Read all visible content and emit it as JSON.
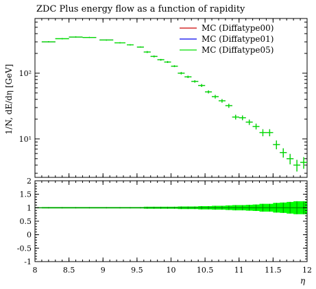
{
  "chart_data": {
    "type": "scatter",
    "title": "ZDC Plus energy flow as a function of rapidity",
    "xlabel": "η",
    "ylabel": "1/N, dE/dη [GeV]",
    "xlim": [
      8,
      12
    ],
    "ylim_log": [
      2.6,
      680
    ],
    "ratio_ylim": [
      -1,
      2
    ],
    "log_y": true,
    "legend_position": "top-right",
    "x_ticks": [
      "8",
      "8.5",
      "9",
      "9.5",
      "10",
      "10.5",
      "11",
      "11.5",
      "12"
    ],
    "y_ticks": [
      {
        "value": 100,
        "label": "10²"
      },
      {
        "value": 10,
        "label": "10¹"
      }
    ],
    "ratio_ticks": [
      "2",
      "1.5",
      "1",
      "0.5",
      "0",
      "-0.5",
      "-1"
    ],
    "series": [
      {
        "name": "MC (Diffatype00)",
        "color": "#cc0000"
      },
      {
        "name": "MC (Diffatype01)",
        "color": "#0000ee"
      },
      {
        "name": "MC (Diffatype05)",
        "color": "#00dd00"
      }
    ],
    "points": [
      {
        "x": 8.2,
        "y": 300,
        "xerr": 0.1,
        "yerr": 0.02
      },
      {
        "x": 8.4,
        "y": 335,
        "xerr": 0.1,
        "yerr": 0.02
      },
      {
        "x": 8.6,
        "y": 355,
        "xerr": 0.1,
        "yerr": 0.02
      },
      {
        "x": 8.8,
        "y": 350,
        "xerr": 0.1,
        "yerr": 0.02
      },
      {
        "x": 9.05,
        "y": 320,
        "xerr": 0.1,
        "yerr": 0.02
      },
      {
        "x": 9.25,
        "y": 290,
        "xerr": 0.08,
        "yerr": 0.02
      },
      {
        "x": 9.4,
        "y": 270,
        "xerr": 0.05,
        "yerr": 0.02
      },
      {
        "x": 9.55,
        "y": 250,
        "xerr": 0.05,
        "yerr": 0.02
      },
      {
        "x": 9.65,
        "y": 210,
        "xerr": 0.05,
        "yerr": 0.03
      },
      {
        "x": 9.75,
        "y": 180,
        "xerr": 0.05,
        "yerr": 0.03
      },
      {
        "x": 9.85,
        "y": 160,
        "xerr": 0.05,
        "yerr": 0.03
      },
      {
        "x": 9.95,
        "y": 148,
        "xerr": 0.05,
        "yerr": 0.03
      },
      {
        "x": 10.05,
        "y": 128,
        "xerr": 0.05,
        "yerr": 0.03
      },
      {
        "x": 10.15,
        "y": 100,
        "xerr": 0.05,
        "yerr": 0.04
      },
      {
        "x": 10.25,
        "y": 88,
        "xerr": 0.05,
        "yerr": 0.04
      },
      {
        "x": 10.35,
        "y": 75,
        "xerr": 0.05,
        "yerr": 0.04
      },
      {
        "x": 10.45,
        "y": 65,
        "xerr": 0.05,
        "yerr": 0.05
      },
      {
        "x": 10.55,
        "y": 52,
        "xerr": 0.05,
        "yerr": 0.05
      },
      {
        "x": 10.65,
        "y": 44,
        "xerr": 0.05,
        "yerr": 0.06
      },
      {
        "x": 10.75,
        "y": 38,
        "xerr": 0.05,
        "yerr": 0.06
      },
      {
        "x": 10.85,
        "y": 32,
        "xerr": 0.05,
        "yerr": 0.07
      },
      {
        "x": 10.95,
        "y": 21.5,
        "xerr": 0.05,
        "yerr": 0.08
      },
      {
        "x": 11.05,
        "y": 21,
        "xerr": 0.05,
        "yerr": 0.08
      },
      {
        "x": 11.15,
        "y": 18,
        "xerr": 0.05,
        "yerr": 0.09
      },
      {
        "x": 11.25,
        "y": 15.5,
        "xerr": 0.05,
        "yerr": 0.1
      },
      {
        "x": 11.35,
        "y": 12.5,
        "xerr": 0.05,
        "yerr": 0.12
      },
      {
        "x": 11.45,
        "y": 12.5,
        "xerr": 0.05,
        "yerr": 0.12
      },
      {
        "x": 11.55,
        "y": 8.2,
        "xerr": 0.05,
        "yerr": 0.15
      },
      {
        "x": 11.65,
        "y": 6.2,
        "xerr": 0.05,
        "yerr": 0.16
      },
      {
        "x": 11.75,
        "y": 5.0,
        "xerr": 0.05,
        "yerr": 0.18
      },
      {
        "x": 11.85,
        "y": 4.0,
        "xerr": 0.05,
        "yerr": 0.2
      },
      {
        "x": 11.95,
        "y": 4.4,
        "xerr": 0.05,
        "yerr": 0.2
      }
    ]
  }
}
